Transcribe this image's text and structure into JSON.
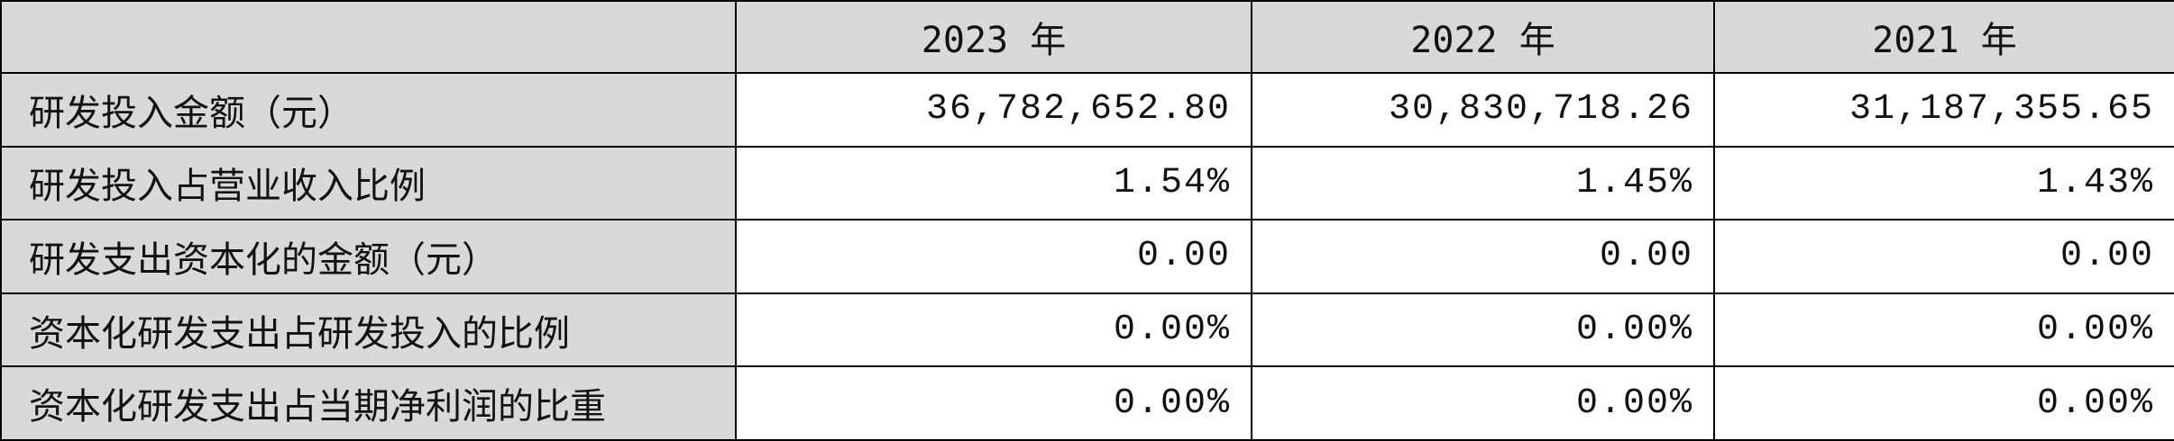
{
  "table": {
    "columns": [
      "2023 年",
      "2022 年",
      "2021 年"
    ],
    "rows": [
      [
        "研发投入金额（元）",
        "36,782,652.80",
        "30,830,718.26",
        "31,187,355.65"
      ],
      [
        "研发投入占营业收入比例",
        "1.54%",
        "1.45%",
        "1.43%"
      ],
      [
        "研发支出资本化的金额（元）",
        "0.00",
        "0.00",
        "0.00"
      ],
      [
        "资本化研发支出占研发投入的比例",
        "0.00%",
        "0.00%",
        "0.00%"
      ],
      [
        "资本化研发支出占当期净利润的比重",
        "0.00%",
        "0.00%",
        "0.00%"
      ]
    ]
  }
}
